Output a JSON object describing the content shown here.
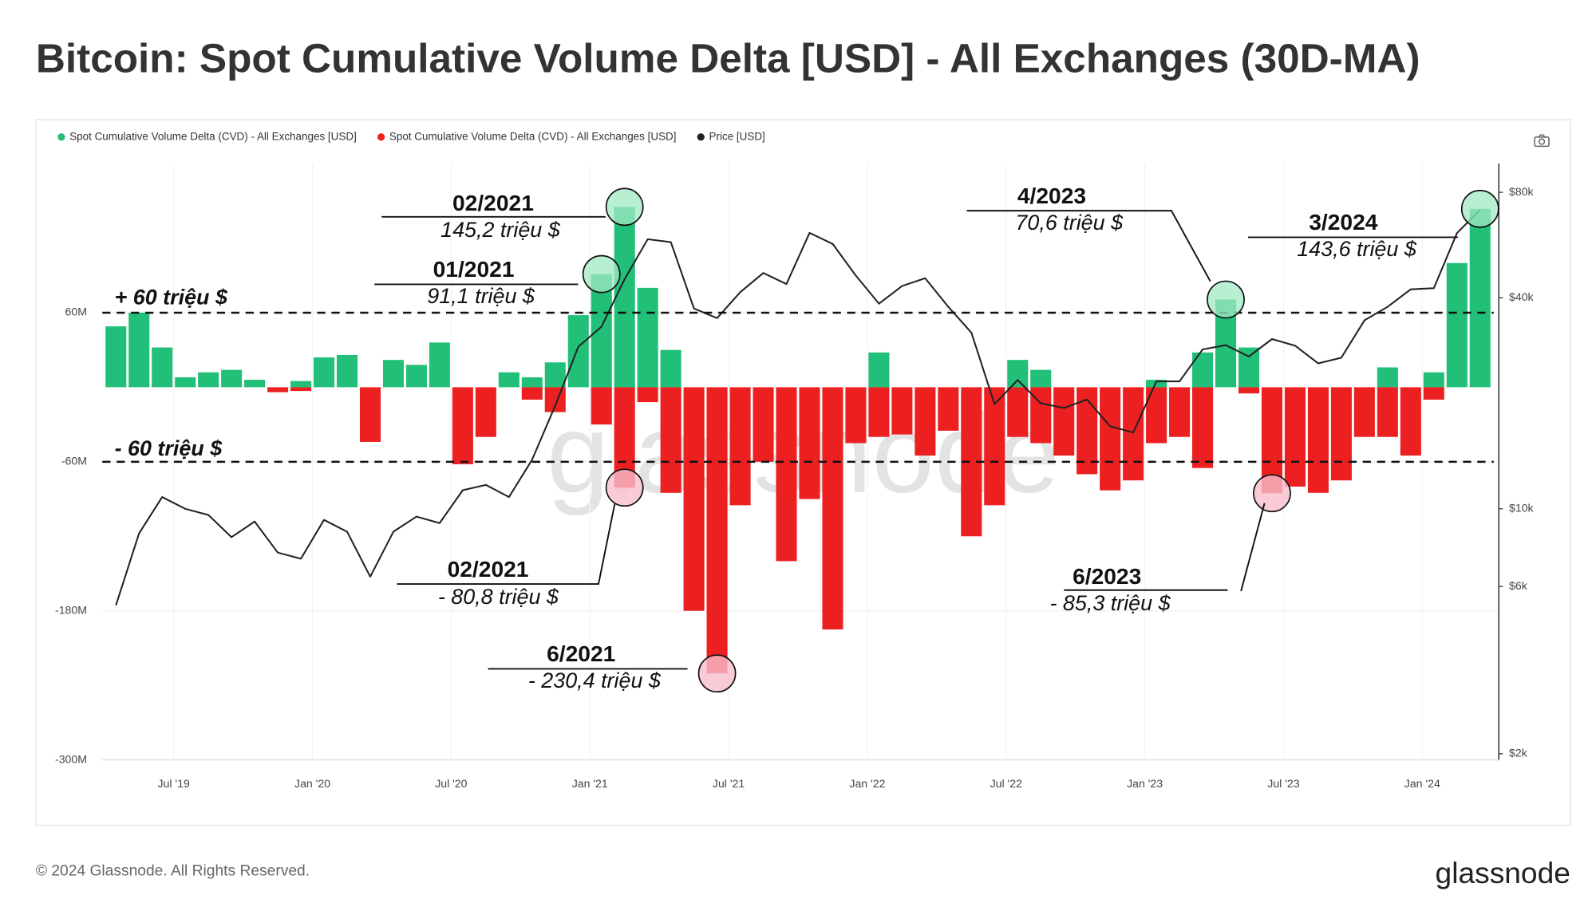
{
  "title": "Bitcoin: Spot Cumulative Volume Delta [USD] - All Exchanges (30D-MA)",
  "footer": "© 2024 Glassnode. All Rights Reserved.",
  "logo": "glassnode",
  "chart_data": {
    "type": "bar",
    "watermark": "glassnode",
    "legend": "top-left",
    "grid": true,
    "log_scale_y2": true,
    "x": [
      "2019-04",
      "2019-05",
      "2019-06",
      "2019-07",
      "2019-08",
      "2019-09",
      "2019-10",
      "2019-11",
      "2019-12",
      "2020-01",
      "2020-02",
      "2020-03",
      "2020-04",
      "2020-05",
      "2020-06",
      "2020-07",
      "2020-08",
      "2020-09",
      "2020-10",
      "2020-11",
      "2020-12",
      "2021-01",
      "2021-02",
      "2021-03",
      "2021-04",
      "2021-05",
      "2021-06",
      "2021-07",
      "2021-08",
      "2021-09",
      "2021-10",
      "2021-11",
      "2021-12",
      "2022-01",
      "2022-02",
      "2022-03",
      "2022-04",
      "2022-05",
      "2022-06",
      "2022-07",
      "2022-08",
      "2022-09",
      "2022-10",
      "2022-11",
      "2022-12",
      "2023-01",
      "2023-02",
      "2023-03",
      "2023-04",
      "2023-05",
      "2023-06",
      "2023-07",
      "2023-08",
      "2023-09",
      "2023-10",
      "2023-11",
      "2023-12",
      "2024-01",
      "2024-02",
      "2024-03"
    ],
    "xlim": [
      "2019-04",
      "2024-04"
    ],
    "xticks": [
      {
        "value": "2019-07",
        "label": "Jul '19"
      },
      {
        "value": "2020-01",
        "label": "Jan '20"
      },
      {
        "value": "2020-07",
        "label": "Jul '20"
      },
      {
        "value": "2021-01",
        "label": "Jan '21"
      },
      {
        "value": "2021-07",
        "label": "Jul '21"
      },
      {
        "value": "2022-01",
        "label": "Jan '22"
      },
      {
        "value": "2022-07",
        "label": "Jul '22"
      },
      {
        "value": "2023-01",
        "label": "Jan '23"
      },
      {
        "value": "2023-07",
        "label": "Jul '23"
      },
      {
        "value": "2024-01",
        "label": "Jan '24"
      }
    ],
    "ylim": [
      -300000000,
      180000000
    ],
    "yticks": [
      {
        "value": 60000000,
        "label": "60M"
      },
      {
        "value": -60000000,
        "label": "-60M"
      },
      {
        "value": -180000000,
        "label": "-180M"
      },
      {
        "value": -300000000,
        "label": "-300M"
      }
    ],
    "y2lim": [
      1920,
      96600
    ],
    "y2ticks": [
      {
        "value": 80000,
        "label": "$80k"
      },
      {
        "value": 40000,
        "label": "$40k"
      },
      {
        "value": 10000,
        "label": "$10k"
      },
      {
        "value": 6000,
        "label": "$6k"
      },
      {
        "value": 2000,
        "label": "$2k"
      }
    ],
    "reference_lines": [
      {
        "value": 60000000,
        "label": "+ 60 triệu $"
      },
      {
        "value": -60000000,
        "label": "- 60 triệu $"
      }
    ],
    "series": [
      {
        "name": "Spot Cumulative Volume Delta (CVD) - All Exchanges [USD]",
        "color": "#22bf78",
        "values": [
          49000000,
          60000000,
          32000000,
          8000000,
          12000000,
          14000000,
          6000000,
          null,
          5000000,
          24000000,
          26000000,
          null,
          22000000,
          18000000,
          36000000,
          null,
          null,
          12000000,
          8000000,
          20000000,
          58000000,
          91100000,
          145200000,
          80000000,
          30000000,
          null,
          null,
          null,
          null,
          null,
          null,
          null,
          null,
          28000000,
          null,
          null,
          null,
          null,
          null,
          22000000,
          14000000,
          null,
          null,
          null,
          null,
          6000000,
          null,
          28000000,
          70600000,
          32000000,
          null,
          null,
          null,
          null,
          null,
          16000000,
          null,
          12000000,
          100000000,
          143600000
        ],
        "value_labels": [
          null,
          null,
          null,
          null,
          null,
          null,
          null,
          null,
          null,
          null,
          null,
          null,
          null,
          null,
          null,
          null,
          null,
          null,
          null,
          null,
          null,
          "91,1 triệu $",
          "145,2 triệu $",
          null,
          null,
          null,
          null,
          null,
          null,
          null,
          null,
          null,
          null,
          null,
          null,
          null,
          null,
          null,
          null,
          null,
          null,
          null,
          null,
          null,
          null,
          null,
          null,
          null,
          "70,6 triệu $",
          null,
          null,
          null,
          null,
          null,
          null,
          null,
          null,
          null,
          null,
          "143,6 triệu $"
        ],
        "date_labels": [
          null,
          null,
          null,
          null,
          null,
          null,
          null,
          null,
          null,
          null,
          null,
          null,
          null,
          null,
          null,
          null,
          null,
          null,
          null,
          null,
          null,
          "01/2021",
          "02/2021",
          null,
          null,
          null,
          null,
          null,
          null,
          null,
          null,
          null,
          null,
          null,
          null,
          null,
          null,
          null,
          null,
          null,
          null,
          null,
          null,
          null,
          null,
          null,
          null,
          null,
          "4/2023",
          null,
          null,
          null,
          null,
          null,
          null,
          null,
          null,
          null,
          null,
          "3/2024"
        ]
      },
      {
        "name": "Spot Cumulative Volume Delta (CVD) - All Exchanges [USD]",
        "color": "#ec2020",
        "values": [
          null,
          null,
          null,
          null,
          null,
          null,
          null,
          -4000000,
          -3000000,
          null,
          null,
          -44000000,
          null,
          null,
          null,
          -62000000,
          -40000000,
          null,
          -10000000,
          -20000000,
          null,
          -30000000,
          -80800000,
          -12000000,
          -85000000,
          -180000000,
          -230400000,
          -95000000,
          -60000000,
          -140000000,
          -90000000,
          -195000000,
          -45000000,
          -40000000,
          -38000000,
          -55000000,
          -35000000,
          -120000000,
          -95000000,
          -40000000,
          -45000000,
          -55000000,
          -70000000,
          -83000000,
          -75000000,
          -45000000,
          -40000000,
          -65000000,
          null,
          -5000000,
          -85300000,
          -80000000,
          -85000000,
          -75000000,
          -40000000,
          -40000000,
          -55000000,
          -10000000,
          null,
          null
        ],
        "value_labels": [
          null,
          null,
          null,
          null,
          null,
          null,
          null,
          null,
          null,
          null,
          null,
          null,
          null,
          null,
          null,
          null,
          null,
          null,
          null,
          null,
          null,
          null,
          "- 80,8 triệu $",
          null,
          null,
          null,
          "- 230,4 triệu $",
          null,
          null,
          null,
          null,
          null,
          null,
          null,
          null,
          null,
          null,
          null,
          null,
          null,
          null,
          null,
          null,
          null,
          null,
          null,
          null,
          null,
          null,
          null,
          "- 85,3 triệu $",
          null,
          null,
          null,
          null,
          null,
          null,
          null,
          null,
          null
        ],
        "date_labels": [
          null,
          null,
          null,
          null,
          null,
          null,
          null,
          null,
          null,
          null,
          null,
          null,
          null,
          null,
          null,
          null,
          null,
          null,
          null,
          null,
          null,
          null,
          "02/2021",
          null,
          null,
          null,
          "6/2021",
          null,
          null,
          null,
          null,
          null,
          null,
          null,
          null,
          null,
          null,
          null,
          null,
          null,
          null,
          null,
          null,
          null,
          null,
          null,
          null,
          null,
          null,
          null,
          "6/2023",
          null,
          null,
          null,
          null,
          null,
          null,
          null,
          null,
          null
        ]
      },
      {
        "name": "Price [USD]",
        "color": "#222222",
        "axis": "y2",
        "values": [
          5300,
          8500,
          10800,
          10000,
          9600,
          8300,
          9200,
          7500,
          7200,
          9300,
          8600,
          6400,
          8600,
          9500,
          9100,
          11300,
          11700,
          10800,
          13800,
          19700,
          29000,
          33100,
          45200,
          58800,
          57700,
          37300,
          35000,
          41500,
          47100,
          43800,
          61300,
          57000,
          46300,
          38500,
          43200,
          45500,
          37700,
          31800,
          19900,
          23300,
          20000,
          19400,
          20500,
          17200,
          16500,
          23100,
          23100,
          28500,
          29300,
          27200,
          30500,
          29200,
          26000,
          27000,
          34500,
          37700,
          42300,
          42600,
          61200,
          71300
        ]
      }
    ]
  }
}
